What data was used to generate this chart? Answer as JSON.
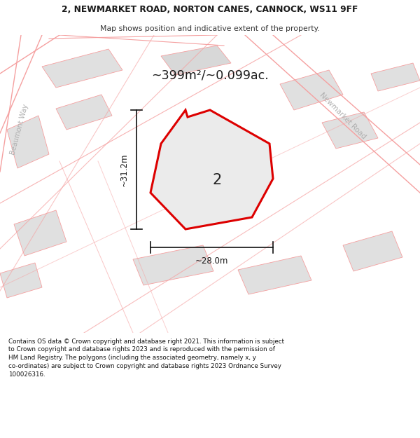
{
  "title_line1": "2, NEWMARKET ROAD, NORTON CANES, CANNOCK, WS11 9FF",
  "title_line2": "Map shows position and indicative extent of the property.",
  "area_text": "~399m²/~0.099ac.",
  "property_number": "2",
  "dim_vertical": "~31.2m",
  "dim_horizontal": "~28.0m",
  "road_label1": "Newmarket Road",
  "road_label2": "Beaumont Way",
  "footer_line1": "Contains OS data © Crown copyright and database right 2021. This information is subject",
  "footer_line2": "to Crown copyright and database rights 2023 and is reproduced with the permission of",
  "footer_line3": "HM Land Registry. The polygons (including the associated geometry, namely x, y",
  "footer_line4": "co-ordinates) are subject to Crown copyright and database rights 2023 Ordnance Survey",
  "footer_line5": "100026316.",
  "map_bg": "#efefef",
  "block_fill": "#e0e0e0",
  "block_fill2": "#d8d8d8",
  "road_line_color": "#f5a0a0",
  "property_fill": "#ebebeb",
  "property_outline_color": "#dd0000",
  "dim_line_color": "#111111",
  "white": "#ffffff",
  "text_dark": "#1a1a1a",
  "road_label_color": "#b0b0b0"
}
